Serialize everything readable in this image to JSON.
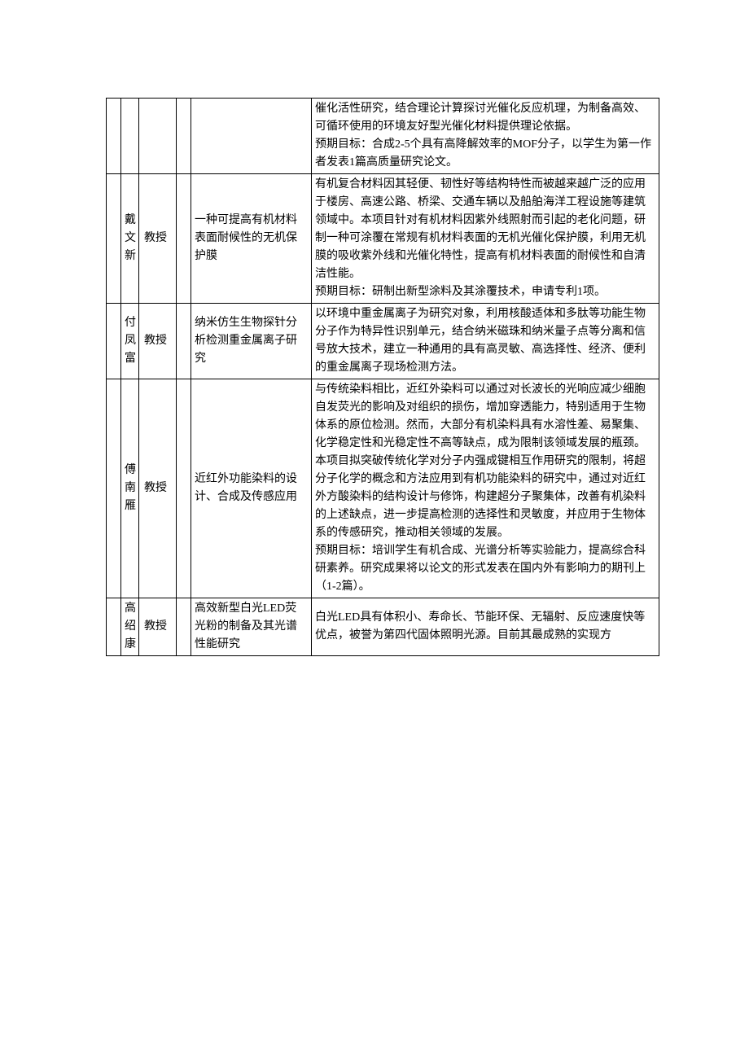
{
  "rows": [
    {
      "name": "",
      "title": "",
      "topic": "",
      "desc": "催化活性研究，结合理论计算探讨光催化反应机理，为制备高效、可循环使用的环境友好型光催化材料提供理论依据。\n预期目标：合成2-5个具有高降解效率的MOF分子，以学生为第一作者发表1篇高质量研究论文。"
    },
    {
      "name": "戴文新",
      "title": "教授",
      "topic": "一种可提高有机材料表面耐候性的无机保护膜",
      "desc": "有机复合材料因其轻便、韧性好等结构特性而被越来越广泛的应用于楼房、高速公路、桥梁、交通车辆以及船舶海洋工程设施等建筑领域中。本项目针对有机材料因紫外线照射而引起的老化问题，研制一种可涂覆在常规有机材料表面的无机光催化保护膜，利用无机膜的吸收紫外线和光催化特性，提高有机材料表面的耐候性和自清洁性能。\n预期目标：研制出新型涂料及其涂覆技术，申请专利1项。"
    },
    {
      "name": "付凤富",
      "title": "教授",
      "topic": "纳米仿生生物探针分析检测重金属离子研究",
      "desc": "以环境中重金属离子为研究对象，利用核酸适体和多肽等功能生物分子作为特异性识别单元，结合纳米磁珠和纳米量子点等分离和信号放大技术，建立一种通用的具有高灵敏、高选择性、经济、便利的重金属离子现场检测方法。"
    },
    {
      "name": "傅南雁",
      "title": "教授",
      "topic": "近红外功能染料的设计、合成及传感应用",
      "desc": "与传统染料相比，近红外染料可以通过对长波长的光响应减少细胞自发荧光的影响及对组织的损伤，增加穿透能力，特别适用于生物体系的原位检测。然而，大部分有机染料具有水溶性差、易聚集、化学稳定性和光稳定性不高等缺点，成为限制该领域发展的瓶颈。本项目拟突破传统化学对分子内强成键相互作用研究的限制，将超分子化学的概念和方法应用到有机功能染料的研究中，通过对近红外方酸染料的结构设计与修饰，构建超分子聚集体，改善有机染料的上述缺点，进一步提高检测的选择性和灵敏度，并应用于生物体系的传感研究，推动相关领域的发展。\n预期目标：培训学生有机合成、光谱分析等实验能力，提高综合科研素养。研究成果将以论文的形式发表在国内外有影响力的期刊上（1-2篇）。"
    },
    {
      "name": "高绍康",
      "title": "教授",
      "topic": "高效新型白光LED荧光粉的制备及其光谱性能研究",
      "desc": "白光LED具有体积小、寿命长、节能环保、无辐射、反应速度快等优点，被誉为第四代固体照明光源。目前其最成熟的实现方"
    }
  ]
}
